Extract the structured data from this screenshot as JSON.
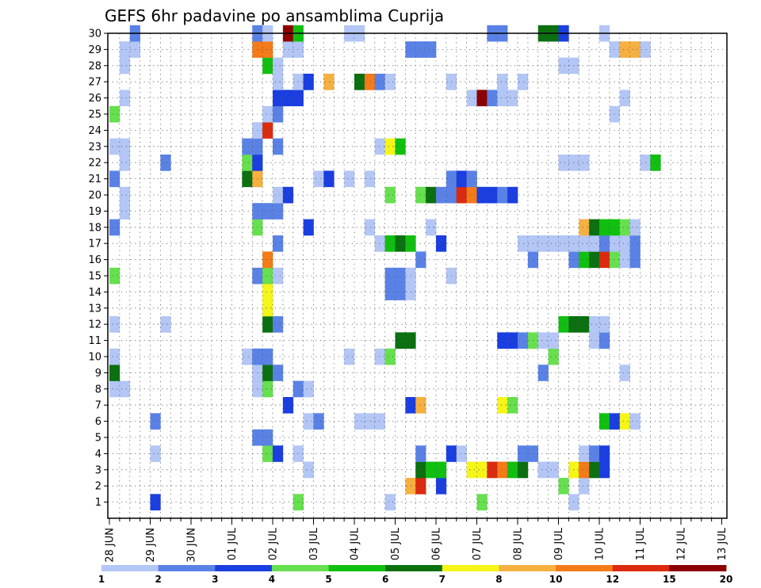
{
  "chart_data": {
    "type": "heatmap",
    "title": "GEFS 6hr padavine po ansamblima Cuprija",
    "members": [
      "1",
      "2",
      "3",
      "4",
      "5",
      "6",
      "7",
      "8",
      "9",
      "10",
      "11",
      "12",
      "13",
      "14",
      "15",
      "16",
      "17",
      "18",
      "19",
      "20",
      "21",
      "22",
      "23",
      "24",
      "25",
      "26",
      "27",
      "28",
      "29",
      "30"
    ],
    "x_labels": [
      "28 JUN",
      "29 JUN",
      "30 JUN",
      "01 JUL",
      "02 JUL",
      "03 JUL",
      "04 JUL",
      "05 JUL",
      "06 JUL",
      "07 JUL",
      "08 JUL",
      "09 JUL",
      "10 JUL",
      "11 JUL",
      "12 JUL",
      "13 JUL"
    ],
    "x_unit": "6-hour step",
    "steps_per_day": 4,
    "legend": {
      "colors": [
        "#b3c6f5",
        "#5a82e6",
        "#1a3ee0",
        "#66e04e",
        "#10c010",
        "#0a7010",
        "#f5f518",
        "#f5b040",
        "#f57a18",
        "#dc2a0e",
        "#8c0000"
      ],
      "labels": [
        "1",
        "2",
        "3",
        "4",
        "5",
        "6",
        "7",
        "8",
        "10",
        "12",
        "15",
        "20"
      ]
    },
    "cells": [
      [
        1,
        4,
        2
      ],
      [
        1,
        18,
        3
      ],
      [
        1,
        27,
        0
      ],
      [
        1,
        36,
        3
      ],
      [
        1,
        45,
        0
      ],
      [
        2,
        29,
        7
      ],
      [
        2,
        30,
        9
      ],
      [
        2,
        32,
        2
      ],
      [
        2,
        44,
        3
      ],
      [
        2,
        46,
        0
      ],
      [
        3,
        19,
        0
      ],
      [
        3,
        30,
        5
      ],
      [
        3,
        31,
        4
      ],
      [
        3,
        32,
        4
      ],
      [
        3,
        35,
        6
      ],
      [
        3,
        36,
        6
      ],
      [
        3,
        37,
        9
      ],
      [
        3,
        38,
        8
      ],
      [
        3,
        39,
        4
      ],
      [
        3,
        40,
        5
      ],
      [
        3,
        42,
        0
      ],
      [
        3,
        43,
        0
      ],
      [
        3,
        45,
        6
      ],
      [
        3,
        46,
        8
      ],
      [
        3,
        47,
        5
      ],
      [
        3,
        48,
        2
      ],
      [
        4,
        4,
        0
      ],
      [
        4,
        15,
        3
      ],
      [
        4,
        16,
        2
      ],
      [
        4,
        18,
        0
      ],
      [
        4,
        30,
        1
      ],
      [
        4,
        33,
        2
      ],
      [
        4,
        34,
        0
      ],
      [
        4,
        40,
        1
      ],
      [
        4,
        41,
        1
      ],
      [
        4,
        46,
        0
      ],
      [
        4,
        47,
        1
      ],
      [
        4,
        48,
        2
      ],
      [
        5,
        14,
        1
      ],
      [
        5,
        15,
        1
      ],
      [
        6,
        4,
        1
      ],
      [
        6,
        19,
        0
      ],
      [
        6,
        20,
        1
      ],
      [
        6,
        24,
        0
      ],
      [
        6,
        25,
        0
      ],
      [
        6,
        26,
        0
      ],
      [
        6,
        48,
        4
      ],
      [
        6,
        49,
        2
      ],
      [
        6,
        50,
        6
      ],
      [
        6,
        51,
        0
      ],
      [
        7,
        17,
        2
      ],
      [
        7,
        29,
        2
      ],
      [
        7,
        30,
        7
      ],
      [
        7,
        38,
        6
      ],
      [
        7,
        39,
        3
      ],
      [
        8,
        0,
        0
      ],
      [
        8,
        1,
        0
      ],
      [
        8,
        14,
        0
      ],
      [
        8,
        15,
        3
      ],
      [
        8,
        18,
        1
      ],
      [
        8,
        19,
        0
      ],
      [
        9,
        0,
        5
      ],
      [
        9,
        14,
        0
      ],
      [
        9,
        15,
        5
      ],
      [
        9,
        16,
        1
      ],
      [
        9,
        42,
        1
      ],
      [
        9,
        50,
        0
      ],
      [
        10,
        0,
        0
      ],
      [
        10,
        13,
        0
      ],
      [
        10,
        14,
        1
      ],
      [
        10,
        15,
        1
      ],
      [
        10,
        23,
        0
      ],
      [
        10,
        26,
        0
      ],
      [
        10,
        27,
        3
      ],
      [
        10,
        43,
        3
      ],
      [
        11,
        28,
        5
      ],
      [
        11,
        29,
        5
      ],
      [
        11,
        38,
        2
      ],
      [
        11,
        39,
        2
      ],
      [
        11,
        40,
        1
      ],
      [
        11,
        41,
        3
      ],
      [
        11,
        42,
        0
      ],
      [
        11,
        43,
        0
      ],
      [
        11,
        47,
        0
      ],
      [
        11,
        48,
        1
      ],
      [
        12,
        0,
        0
      ],
      [
        12,
        5,
        0
      ],
      [
        12,
        15,
        5
      ],
      [
        12,
        16,
        1
      ],
      [
        12,
        44,
        4
      ],
      [
        12,
        45,
        5
      ],
      [
        12,
        46,
        5
      ],
      [
        12,
        47,
        0
      ],
      [
        12,
        48,
        0
      ],
      [
        13,
        15,
        6
      ],
      [
        14,
        15,
        6
      ],
      [
        14,
        27,
        1
      ],
      [
        14,
        28,
        1
      ],
      [
        14,
        29,
        0
      ],
      [
        15,
        0,
        3
      ],
      [
        15,
        14,
        1
      ],
      [
        15,
        15,
        3
      ],
      [
        15,
        16,
        0
      ],
      [
        15,
        27,
        1
      ],
      [
        15,
        28,
        1
      ],
      [
        15,
        29,
        0
      ],
      [
        15,
        33,
        0
      ],
      [
        16,
        15,
        8
      ],
      [
        16,
        30,
        1
      ],
      [
        16,
        41,
        1
      ],
      [
        16,
        45,
        1
      ],
      [
        16,
        46,
        4
      ],
      [
        16,
        47,
        5
      ],
      [
        16,
        48,
        9
      ],
      [
        16,
        49,
        3
      ],
      [
        16,
        50,
        0
      ],
      [
        16,
        51,
        1
      ],
      [
        17,
        16,
        1
      ],
      [
        17,
        26,
        0
      ],
      [
        17,
        27,
        4
      ],
      [
        17,
        28,
        5
      ],
      [
        17,
        29,
        4
      ],
      [
        17,
        32,
        2
      ],
      [
        17,
        40,
        0
      ],
      [
        17,
        41,
        0
      ],
      [
        17,
        42,
        0
      ],
      [
        17,
        43,
        0
      ],
      [
        17,
        44,
        0
      ],
      [
        17,
        45,
        0
      ],
      [
        17,
        46,
        0
      ],
      [
        17,
        47,
        0
      ],
      [
        17,
        48,
        1
      ],
      [
        17,
        49,
        0
      ],
      [
        17,
        50,
        0
      ],
      [
        17,
        51,
        1
      ],
      [
        18,
        0,
        1
      ],
      [
        18,
        14,
        3
      ],
      [
        18,
        19,
        2
      ],
      [
        18,
        25,
        0
      ],
      [
        18,
        31,
        0
      ],
      [
        18,
        46,
        7
      ],
      [
        18,
        47,
        5
      ],
      [
        18,
        48,
        4
      ],
      [
        18,
        49,
        4
      ],
      [
        18,
        50,
        3
      ],
      [
        18,
        51,
        0
      ],
      [
        19,
        1,
        0
      ],
      [
        19,
        14,
        1
      ],
      [
        19,
        15,
        1
      ],
      [
        19,
        16,
        1
      ],
      [
        20,
        1,
        0
      ],
      [
        20,
        16,
        0
      ],
      [
        20,
        17,
        2
      ],
      [
        20,
        27,
        3
      ],
      [
        20,
        30,
        3
      ],
      [
        20,
        31,
        5
      ],
      [
        20,
        32,
        1
      ],
      [
        20,
        33,
        1
      ],
      [
        20,
        34,
        9
      ],
      [
        20,
        35,
        8
      ],
      [
        20,
        36,
        2
      ],
      [
        20,
        37,
        2
      ],
      [
        20,
        38,
        1
      ],
      [
        20,
        39,
        2
      ],
      [
        21,
        0,
        1
      ],
      [
        21,
        13,
        5
      ],
      [
        21,
        14,
        7
      ],
      [
        21,
        20,
        0
      ],
      [
        21,
        21,
        2
      ],
      [
        21,
        23,
        0
      ],
      [
        21,
        25,
        0
      ],
      [
        21,
        33,
        1
      ],
      [
        21,
        34,
        2
      ],
      [
        21,
        35,
        1
      ],
      [
        22,
        1,
        0
      ],
      [
        22,
        5,
        1
      ],
      [
        22,
        13,
        3
      ],
      [
        22,
        14,
        2
      ],
      [
        22,
        44,
        0
      ],
      [
        22,
        45,
        0
      ],
      [
        22,
        46,
        0
      ],
      [
        22,
        52,
        0
      ],
      [
        22,
        53,
        4
      ],
      [
        23,
        0,
        0
      ],
      [
        23,
        1,
        0
      ],
      [
        23,
        13,
        1
      ],
      [
        23,
        14,
        1
      ],
      [
        23,
        16,
        1
      ],
      [
        23,
        26,
        0
      ],
      [
        23,
        27,
        6
      ],
      [
        23,
        28,
        4
      ],
      [
        24,
        14,
        0
      ],
      [
        24,
        15,
        9
      ],
      [
        25,
        0,
        3
      ],
      [
        25,
        15,
        0
      ],
      [
        25,
        16,
        1
      ],
      [
        25,
        49,
        0
      ],
      [
        26,
        1,
        0
      ],
      [
        26,
        16,
        2
      ],
      [
        26,
        17,
        2
      ],
      [
        26,
        18,
        2
      ],
      [
        26,
        35,
        0
      ],
      [
        26,
        36,
        10
      ],
      [
        26,
        37,
        1
      ],
      [
        26,
        38,
        0
      ],
      [
        26,
        39,
        0
      ],
      [
        26,
        50,
        0
      ],
      [
        27,
        16,
        0
      ],
      [
        27,
        18,
        0
      ],
      [
        27,
        19,
        2
      ],
      [
        27,
        21,
        7
      ],
      [
        27,
        24,
        5
      ],
      [
        27,
        25,
        8
      ],
      [
        27,
        26,
        1
      ],
      [
        27,
        27,
        0
      ],
      [
        27,
        33,
        0
      ],
      [
        27,
        38,
        0
      ],
      [
        27,
        40,
        0
      ],
      [
        28,
        1,
        0
      ],
      [
        28,
        15,
        4
      ],
      [
        28,
        16,
        0
      ],
      [
        28,
        44,
        0
      ],
      [
        28,
        45,
        0
      ],
      [
        29,
        1,
        0
      ],
      [
        29,
        2,
        0
      ],
      [
        29,
        14,
        8
      ],
      [
        29,
        15,
        8
      ],
      [
        29,
        17,
        0
      ],
      [
        29,
        18,
        0
      ],
      [
        29,
        29,
        1
      ],
      [
        29,
        30,
        1
      ],
      [
        29,
        31,
        1
      ],
      [
        29,
        49,
        0
      ],
      [
        29,
        50,
        7
      ],
      [
        29,
        51,
        7
      ],
      [
        29,
        52,
        0
      ],
      [
        30,
        2,
        1
      ],
      [
        30,
        14,
        1
      ],
      [
        30,
        15,
        0
      ],
      [
        30,
        17,
        10
      ],
      [
        30,
        18,
        4
      ],
      [
        30,
        23,
        0
      ],
      [
        30,
        24,
        0
      ],
      [
        30,
        37,
        1
      ],
      [
        30,
        38,
        1
      ],
      [
        30,
        42,
        5
      ],
      [
        30,
        43,
        5
      ],
      [
        30,
        44,
        2
      ],
      [
        30,
        48,
        0
      ]
    ]
  }
}
